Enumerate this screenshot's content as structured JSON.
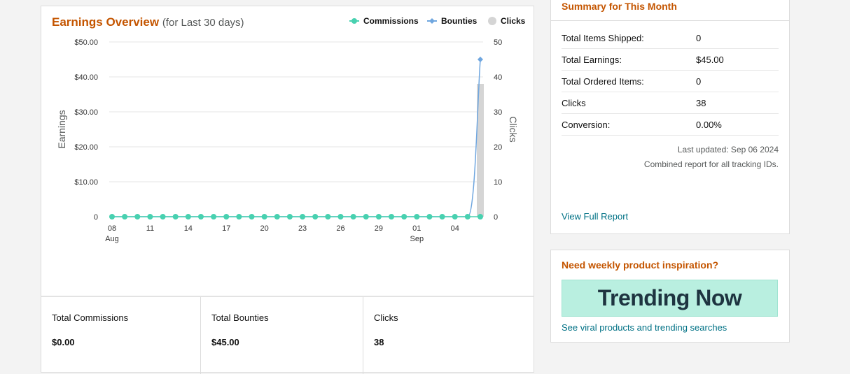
{
  "chart_panel": {
    "title": "Earnings Overview",
    "subtitle": "(for Last 30 days)",
    "legend": [
      {
        "label": "Commissions",
        "color": "#48d1b0",
        "icon": "dot-line-icon"
      },
      {
        "label": "Bounties",
        "color": "#6fa6df",
        "icon": "diamond-line-icon"
      },
      {
        "label": "Clicks",
        "color": "#d5d5d5",
        "icon": "circle-icon"
      }
    ]
  },
  "chart_data": {
    "type": "line",
    "ylabel": "Earnings",
    "y2label": "Clicks",
    "ylim": [
      0,
      50
    ],
    "y2lim": [
      0,
      50
    ],
    "y_ticks": [
      "0",
      "$10.00",
      "$20.00",
      "$30.00",
      "$40.00",
      "$50.00"
    ],
    "y2_ticks": [
      "0",
      "10",
      "20",
      "30",
      "40",
      "50"
    ],
    "x_ticks": [
      {
        "label": "08",
        "sub": "Aug"
      },
      {
        "label": "11",
        "sub": ""
      },
      {
        "label": "14",
        "sub": ""
      },
      {
        "label": "17",
        "sub": ""
      },
      {
        "label": "20",
        "sub": ""
      },
      {
        "label": "23",
        "sub": ""
      },
      {
        "label": "26",
        "sub": ""
      },
      {
        "label": "29",
        "sub": ""
      },
      {
        "label": "01",
        "sub": "Sep"
      },
      {
        "label": "04",
        "sub": ""
      }
    ],
    "x": [
      "Aug 08",
      "Aug 09",
      "Aug 10",
      "Aug 11",
      "Aug 12",
      "Aug 13",
      "Aug 14",
      "Aug 15",
      "Aug 16",
      "Aug 17",
      "Aug 18",
      "Aug 19",
      "Aug 20",
      "Aug 21",
      "Aug 22",
      "Aug 23",
      "Aug 24",
      "Aug 25",
      "Aug 26",
      "Aug 27",
      "Aug 28",
      "Aug 29",
      "Aug 30",
      "Aug 31",
      "Sep 01",
      "Sep 02",
      "Sep 03",
      "Sep 04",
      "Sep 05",
      "Sep 06"
    ],
    "series": [
      {
        "name": "Commissions",
        "axis": "left",
        "kind": "line",
        "color": "#48d1b0",
        "values": [
          0,
          0,
          0,
          0,
          0,
          0,
          0,
          0,
          0,
          0,
          0,
          0,
          0,
          0,
          0,
          0,
          0,
          0,
          0,
          0,
          0,
          0,
          0,
          0,
          0,
          0,
          0,
          0,
          0,
          0
        ]
      },
      {
        "name": "Bounties",
        "axis": "left",
        "kind": "line",
        "color": "#6fa6df",
        "values": [
          0,
          0,
          0,
          0,
          0,
          0,
          0,
          0,
          0,
          0,
          0,
          0,
          0,
          0,
          0,
          0,
          0,
          0,
          0,
          0,
          0,
          0,
          0,
          0,
          0,
          0,
          0,
          0,
          0,
          45
        ]
      },
      {
        "name": "Clicks",
        "axis": "right",
        "kind": "bar",
        "color": "#d5d5d5",
        "values": [
          0,
          0,
          0,
          0,
          0,
          0,
          0,
          0,
          0,
          0,
          0,
          0,
          0,
          0,
          0,
          0,
          0,
          0,
          0,
          0,
          0,
          0,
          0,
          0,
          0,
          0,
          0,
          0,
          0,
          38
        ]
      }
    ]
  },
  "stats": [
    {
      "label": "Total Commissions",
      "value": "$0.00"
    },
    {
      "label": "Total Bounties",
      "value": "$45.00"
    },
    {
      "label": "Clicks",
      "value": "38"
    }
  ],
  "summary": {
    "title": "Summary for This Month",
    "rows": [
      {
        "label": "Total Items Shipped:",
        "value": "0"
      },
      {
        "label": "Total Earnings:",
        "value": "$45.00"
      },
      {
        "label": "Total Ordered Items:",
        "value": "0"
      },
      {
        "label": "Clicks",
        "value": "38"
      },
      {
        "label": "Conversion:",
        "value": "0.00%"
      }
    ],
    "last_updated": "Last updated: Sep 06 2024",
    "combined_note": "Combined report for all tracking IDs.",
    "full_report_link": "View Full Report"
  },
  "inspiration": {
    "title": "Need weekly product inspiration?",
    "banner_text": "Trending Now",
    "link": "See viral products and trending searches"
  }
}
